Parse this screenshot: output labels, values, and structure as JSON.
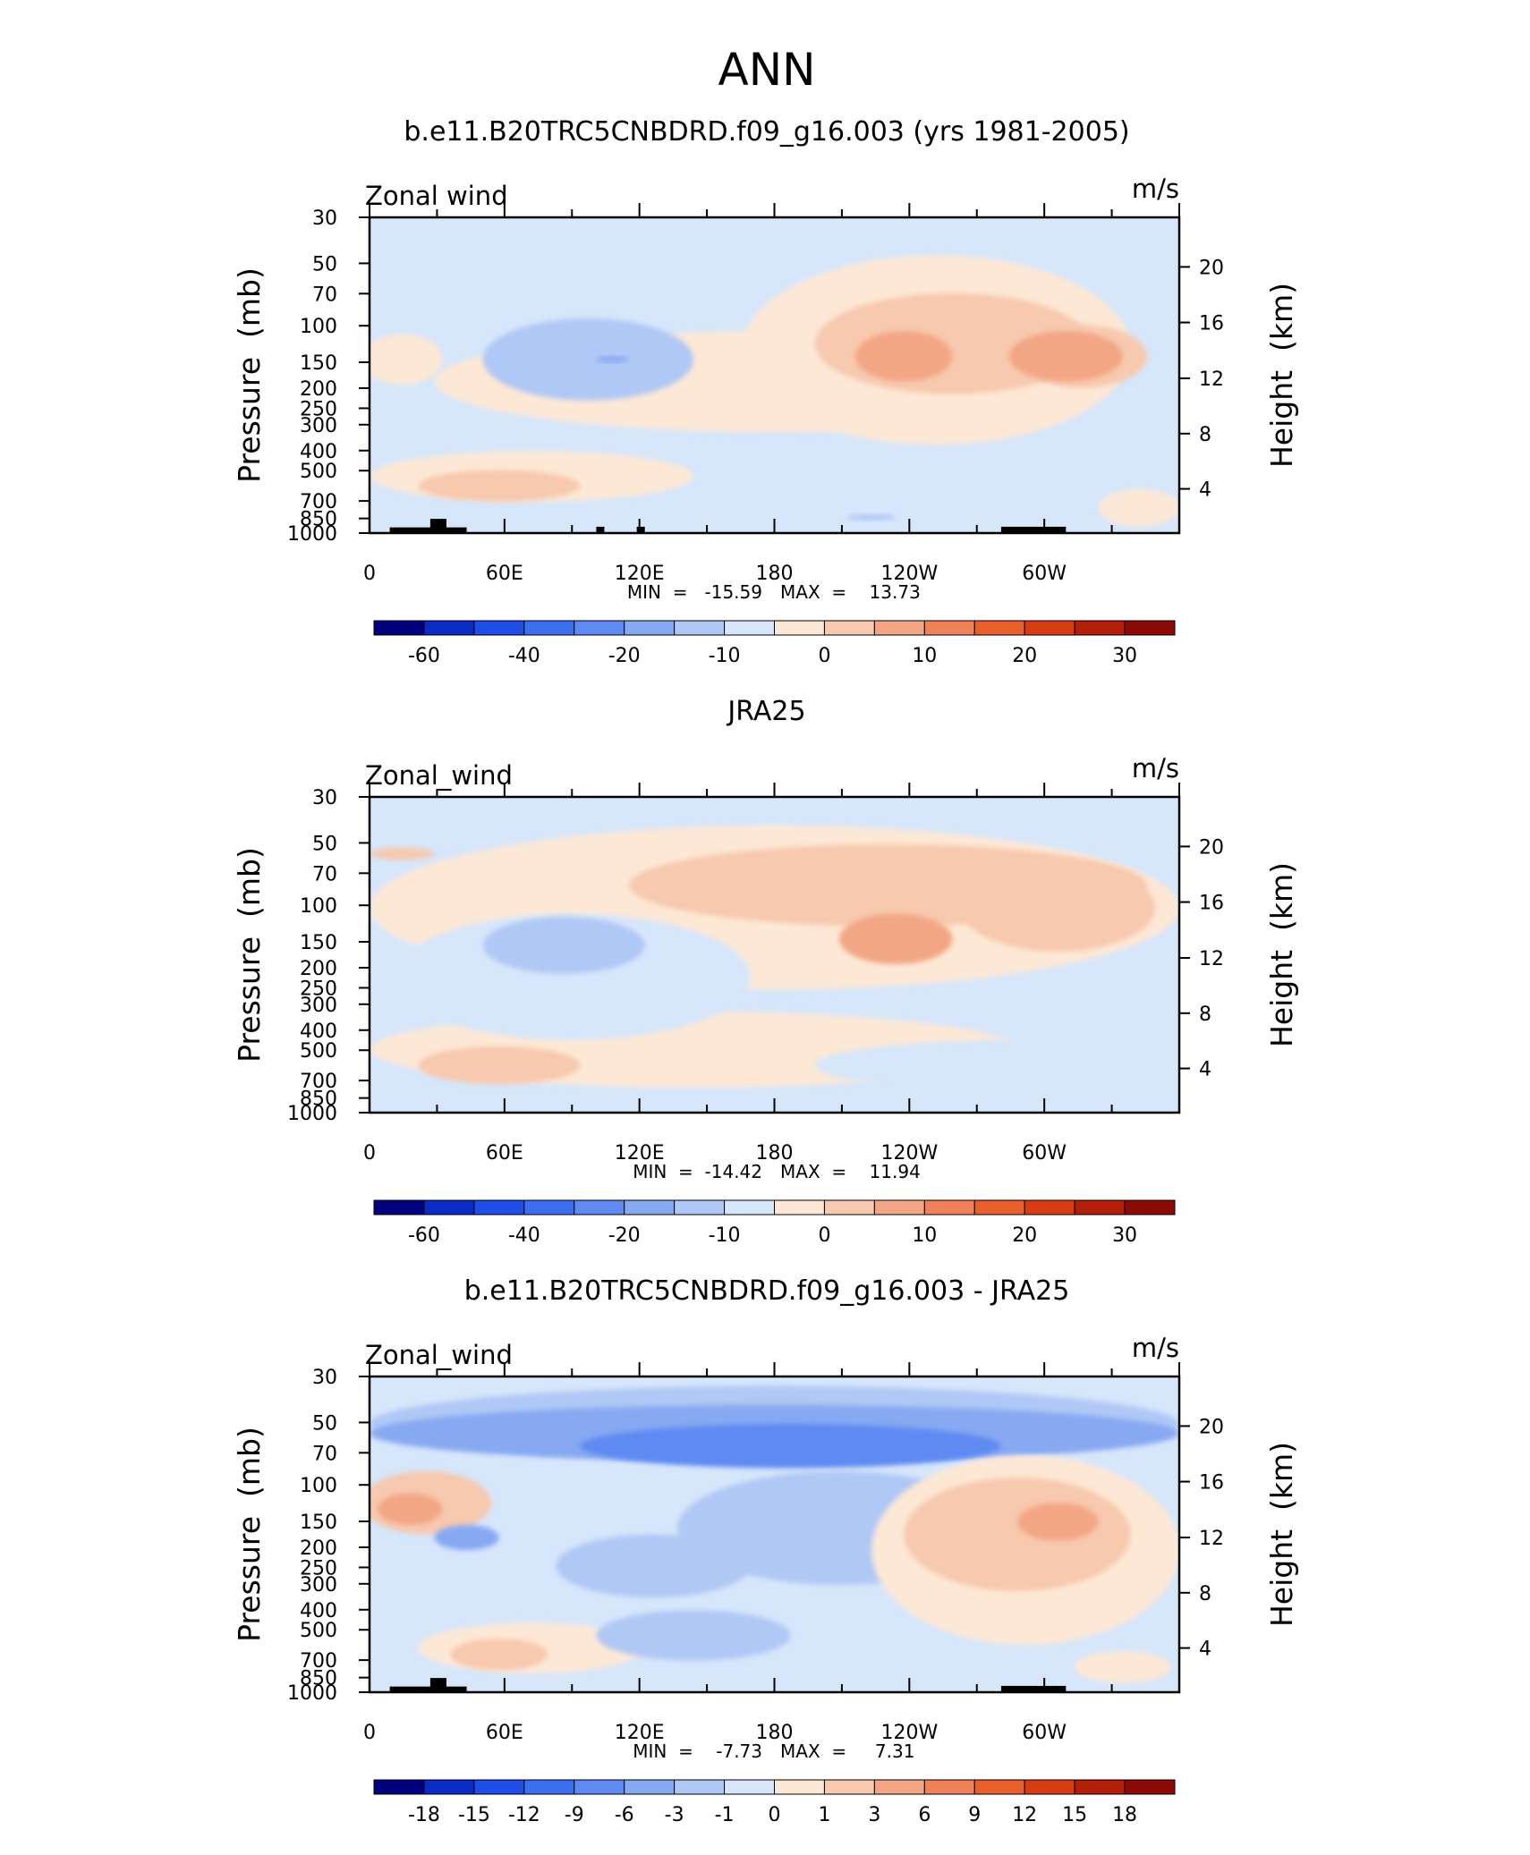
{
  "figure": {
    "title": "ANN"
  },
  "chart_data": [
    {
      "type": "heatmap",
      "title": "b.e11.B20TRC5CNBDRD.f09_g16.003 (yrs 1981-2005)",
      "variable": "Zonal wind",
      "units": "m/s",
      "xlabel": "",
      "ylabel": "Pressure  (mb)",
      "y2label": "Height  (km)",
      "x_ticks": [
        "0",
        "60E",
        "120E",
        "180",
        "120W",
        "60W"
      ],
      "y_ticks": [
        "30",
        "50",
        "70",
        "100",
        "150",
        "200",
        "250",
        "300",
        "400",
        "500",
        "700",
        "850",
        "1000"
      ],
      "y2_ticks": [
        "4",
        "8",
        "12",
        "16",
        "20"
      ],
      "min_label": "MIN  =   -15.59",
      "max_label": "MAX  =    13.73",
      "min": -15.59,
      "max": 13.73,
      "colorbar_labels": [
        "-60",
        "-40",
        "-20",
        "-10",
        "0",
        "10",
        "20",
        "30"
      ],
      "colorbar_levels": [
        -70,
        -60,
        -50,
        -40,
        -30,
        -20,
        -15,
        -10,
        -5,
        0,
        5,
        10,
        15,
        20,
        25,
        30,
        40
      ]
    },
    {
      "type": "heatmap",
      "title": "JRA25",
      "variable": "Zonal_wind",
      "units": "m/s",
      "xlabel": "",
      "ylabel": "Pressure  (mb)",
      "y2label": "Height  (km)",
      "x_ticks": [
        "0",
        "60E",
        "120E",
        "180",
        "120W",
        "60W"
      ],
      "y_ticks": [
        "30",
        "50",
        "70",
        "100",
        "150",
        "200",
        "250",
        "300",
        "400",
        "500",
        "700",
        "850",
        "1000"
      ],
      "y2_ticks": [
        "4",
        "8",
        "12",
        "16",
        "20"
      ],
      "min_label": "MIN  =  -14.42",
      "max_label": "MAX  =    11.94",
      "min": -14.42,
      "max": 11.94,
      "colorbar_labels": [
        "-60",
        "-40",
        "-20",
        "-10",
        "0",
        "10",
        "20",
        "30"
      ],
      "colorbar_levels": [
        -70,
        -60,
        -50,
        -40,
        -30,
        -20,
        -15,
        -10,
        -5,
        0,
        5,
        10,
        15,
        20,
        25,
        30,
        40
      ]
    },
    {
      "type": "heatmap",
      "title": "b.e11.B20TRC5CNBDRD.f09_g16.003 - JRA25",
      "variable": "Zonal_wind",
      "units": "m/s",
      "xlabel": "",
      "ylabel": "Pressure  (mb)",
      "y2label": "Height  (km)",
      "x_ticks": [
        "0",
        "60E",
        "120E",
        "180",
        "120W",
        "60W"
      ],
      "y_ticks": [
        "30",
        "50",
        "70",
        "100",
        "150",
        "200",
        "250",
        "300",
        "400",
        "500",
        "700",
        "850",
        "1000"
      ],
      "y2_ticks": [
        "4",
        "8",
        "12",
        "16",
        "20"
      ],
      "min_label": "MIN  =    -7.73",
      "max_label": "MAX  =     7.31",
      "min": -7.73,
      "max": 7.31,
      "colorbar_labels": [
        "-18",
        "-15",
        "-12",
        "-9",
        "-6",
        "-3",
        "-1",
        "0",
        "1",
        "3",
        "6",
        "9",
        "12",
        "15",
        "18"
      ],
      "colorbar_levels": [
        -21,
        -18,
        -15,
        -12,
        -9,
        -6,
        -3,
        -1,
        0,
        1,
        3,
        6,
        9,
        12,
        15,
        18,
        21
      ]
    }
  ],
  "palette": [
    "#00007f",
    "#0a2bc4",
    "#1e4ee6",
    "#3d6ef0",
    "#5e8af2",
    "#87a9f2",
    "#b0c8f5",
    "#d6e6fb",
    "#fde8d6",
    "#f7c9ae",
    "#f3a684",
    "#ef825a",
    "#e9602c",
    "#d63d12",
    "#b21e08",
    "#8b0a06"
  ],
  "colors": {
    "terrain": "#000000",
    "frame": "#000000",
    "background": "#ffffff"
  }
}
